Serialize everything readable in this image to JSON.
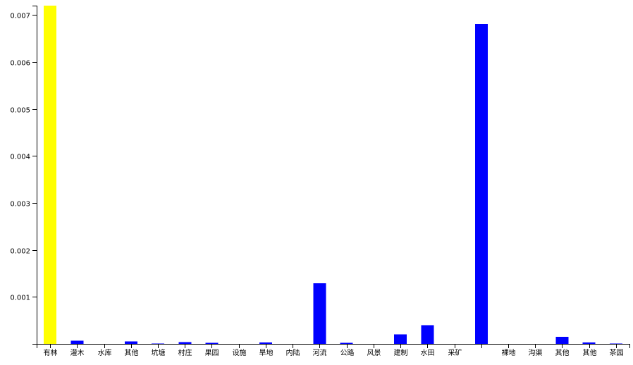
{
  "chart_data": {
    "type": "bar",
    "title": "",
    "xlabel": "",
    "ylabel": "",
    "ylim": [
      0,
      0.0072
    ],
    "yticks": [
      0.001,
      0.002,
      0.003,
      0.004,
      0.005,
      0.006,
      0.007
    ],
    "ytick_labels": [
      "0.001",
      "0.002",
      "0.003",
      "0.004",
      "0.005",
      "0.006",
      "0.007"
    ],
    "grid": false,
    "legend": false,
    "colors": {
      "highlight": "#ffff00",
      "default": "#0000ff",
      "axis": "#000000"
    },
    "categories": [
      "有林",
      "灌木",
      "水库",
      "其他",
      "坑塘",
      "村庄",
      "果园",
      "设施",
      "旱地",
      "内陆",
      "河流",
      "公路",
      "风景",
      "建制",
      "水田",
      "采矿",
      "",
      "裸地",
      "沟渠",
      "其他",
      "其他",
      "茶园"
    ],
    "values": [
      0.0072,
      7e-05,
      0.0,
      5e-05,
      1e-05,
      4e-05,
      2e-05,
      0.0,
      3e-05,
      0.0,
      0.00129,
      2e-05,
      0.0,
      0.0002,
      0.0004,
      0.0,
      0.00681,
      0.0,
      0.0,
      0.00015,
      3e-05,
      1e-05
    ],
    "bar_colors": [
      "#ffff00",
      "#0000ff",
      "#0000ff",
      "#0000ff",
      "#0000ff",
      "#0000ff",
      "#0000ff",
      "#0000ff",
      "#0000ff",
      "#0000ff",
      "#0000ff",
      "#0000ff",
      "#0000ff",
      "#0000ff",
      "#0000ff",
      "#0000ff",
      "#0000ff",
      "#0000ff",
      "#0000ff",
      "#0000ff",
      "#0000ff",
      "#0000ff"
    ]
  }
}
